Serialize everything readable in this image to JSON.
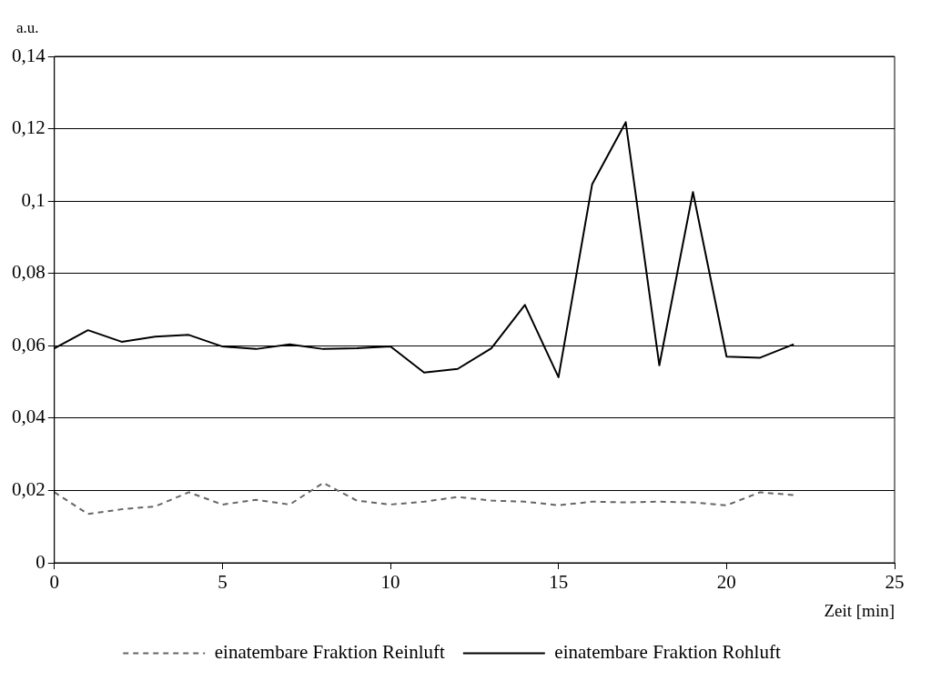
{
  "chart_data": {
    "type": "line",
    "ylabel": "a.u.",
    "xlabel": "Zeit [min]",
    "x": [
      0,
      1,
      2,
      3,
      4,
      5,
      6,
      7,
      8,
      9,
      10,
      11,
      12,
      13,
      14,
      15,
      16,
      17,
      18,
      19,
      20,
      21,
      22
    ],
    "series": [
      {
        "name": "einatembare Fraktion Reinluft",
        "color": "#666666",
        "line_style": "dashed",
        "values": [
          0.0195,
          0.0135,
          0.0148,
          0.0156,
          0.0195,
          0.0161,
          0.0174,
          0.0161,
          0.0221,
          0.0172,
          0.0161,
          0.0169,
          0.0182,
          0.0172,
          0.0169,
          0.0159,
          0.0169,
          0.0167,
          0.0169,
          0.0167,
          0.0159,
          0.0195,
          0.0187
        ]
      },
      {
        "name": "einatembare Fraktion Rohluft",
        "color": "#000000",
        "line_style": "solid",
        "values": [
          0.0593,
          0.0643,
          0.0611,
          0.0625,
          0.063,
          0.0598,
          0.0591,
          0.0604,
          0.0591,
          0.0593,
          0.0598,
          0.0526,
          0.0536,
          0.0593,
          0.0713,
          0.0513,
          0.1046,
          0.1218,
          0.0546,
          0.1025,
          0.057,
          0.0567,
          0.0604
        ]
      }
    ],
    "xlim": [
      0,
      25
    ],
    "xticks": [
      0,
      5,
      10,
      15,
      20,
      25
    ],
    "ylim": [
      0,
      0.14
    ],
    "yticks": [
      {
        "value": 0,
        "label": "0"
      },
      {
        "value": 0.02,
        "label": "0,02"
      },
      {
        "value": 0.04,
        "label": "0,04"
      },
      {
        "value": 0.06,
        "label": "0,06"
      },
      {
        "value": 0.08,
        "label": "0,08"
      },
      {
        "value": 0.1,
        "label": "0,1"
      },
      {
        "value": 0.12,
        "label": "0,12"
      },
      {
        "value": 0.14,
        "label": "0,14"
      }
    ],
    "grid": "y",
    "legend": "bottom",
    "marker": "none"
  }
}
